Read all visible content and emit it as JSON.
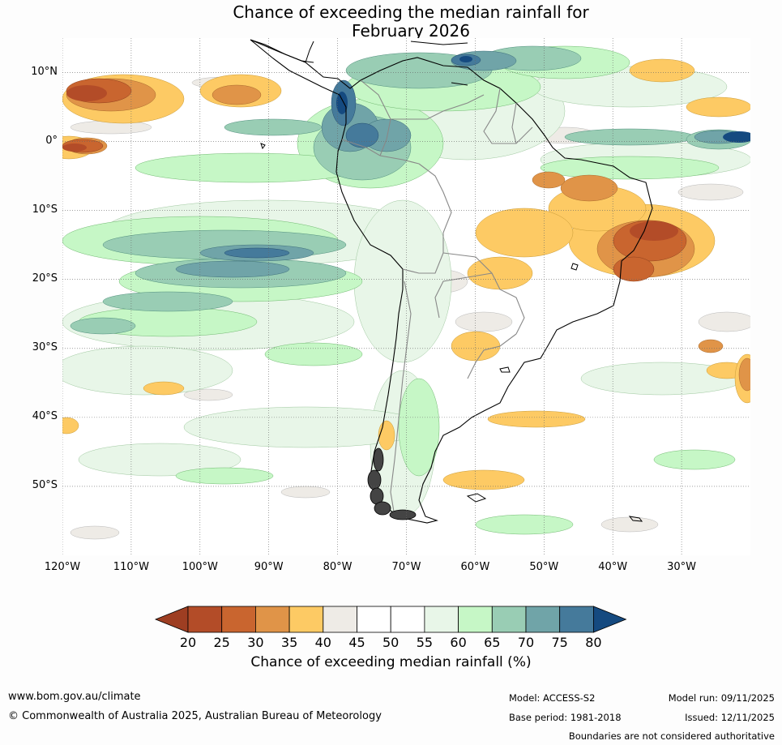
{
  "title": {
    "line1": "Chance of exceeding the median rainfall for",
    "line2": "February 2026"
  },
  "map": {
    "region": "South America",
    "lat_range": [
      -60,
      15
    ],
    "lon_range": [
      -120,
      -20
    ],
    "lat_labels": [
      "10°N",
      "0°",
      "10°S",
      "20°S",
      "30°S",
      "40°S",
      "50°S"
    ],
    "lat_values": [
      10,
      0,
      -10,
      -20,
      -30,
      -40,
      -50
    ],
    "lon_labels": [
      "120°W",
      "110°W",
      "100°W",
      "90°W",
      "80°W",
      "70°W",
      "60°W",
      "50°W",
      "40°W",
      "30°W"
    ],
    "lon_values": [
      -120,
      -110,
      -100,
      -90,
      -80,
      -70,
      -60,
      -50,
      -40,
      -30
    ]
  },
  "colorbar": {
    "ticks": [
      "20",
      "25",
      "30",
      "35",
      "40",
      "45",
      "50",
      "55",
      "60",
      "65",
      "70",
      "75",
      "80"
    ],
    "colors": [
      "#9e3e22",
      "#b34c28",
      "#c9652f",
      "#e09448",
      "#fdca64",
      "#eeebe6",
      "#ffffff",
      "#ffffff",
      "#e8f6e8",
      "#c6f7c6",
      "#99cdb4",
      "#70a4a8",
      "#457a9b",
      "#154a80"
    ],
    "label": "Chance of exceeding median rainfall (%)"
  },
  "footer": {
    "website": "www.bom.gov.au/climate",
    "copyright": "© Commonwealth of Australia 2025, Australian Bureau of Meteorology",
    "model": "Model: ACCESS-S2",
    "model_run": "Model run: 09/11/2025",
    "base_period": "Base period: 1981-2018",
    "issued": "Issued: 12/11/2025",
    "disclaimer": "Boundaries are not considered authoritative"
  }
}
